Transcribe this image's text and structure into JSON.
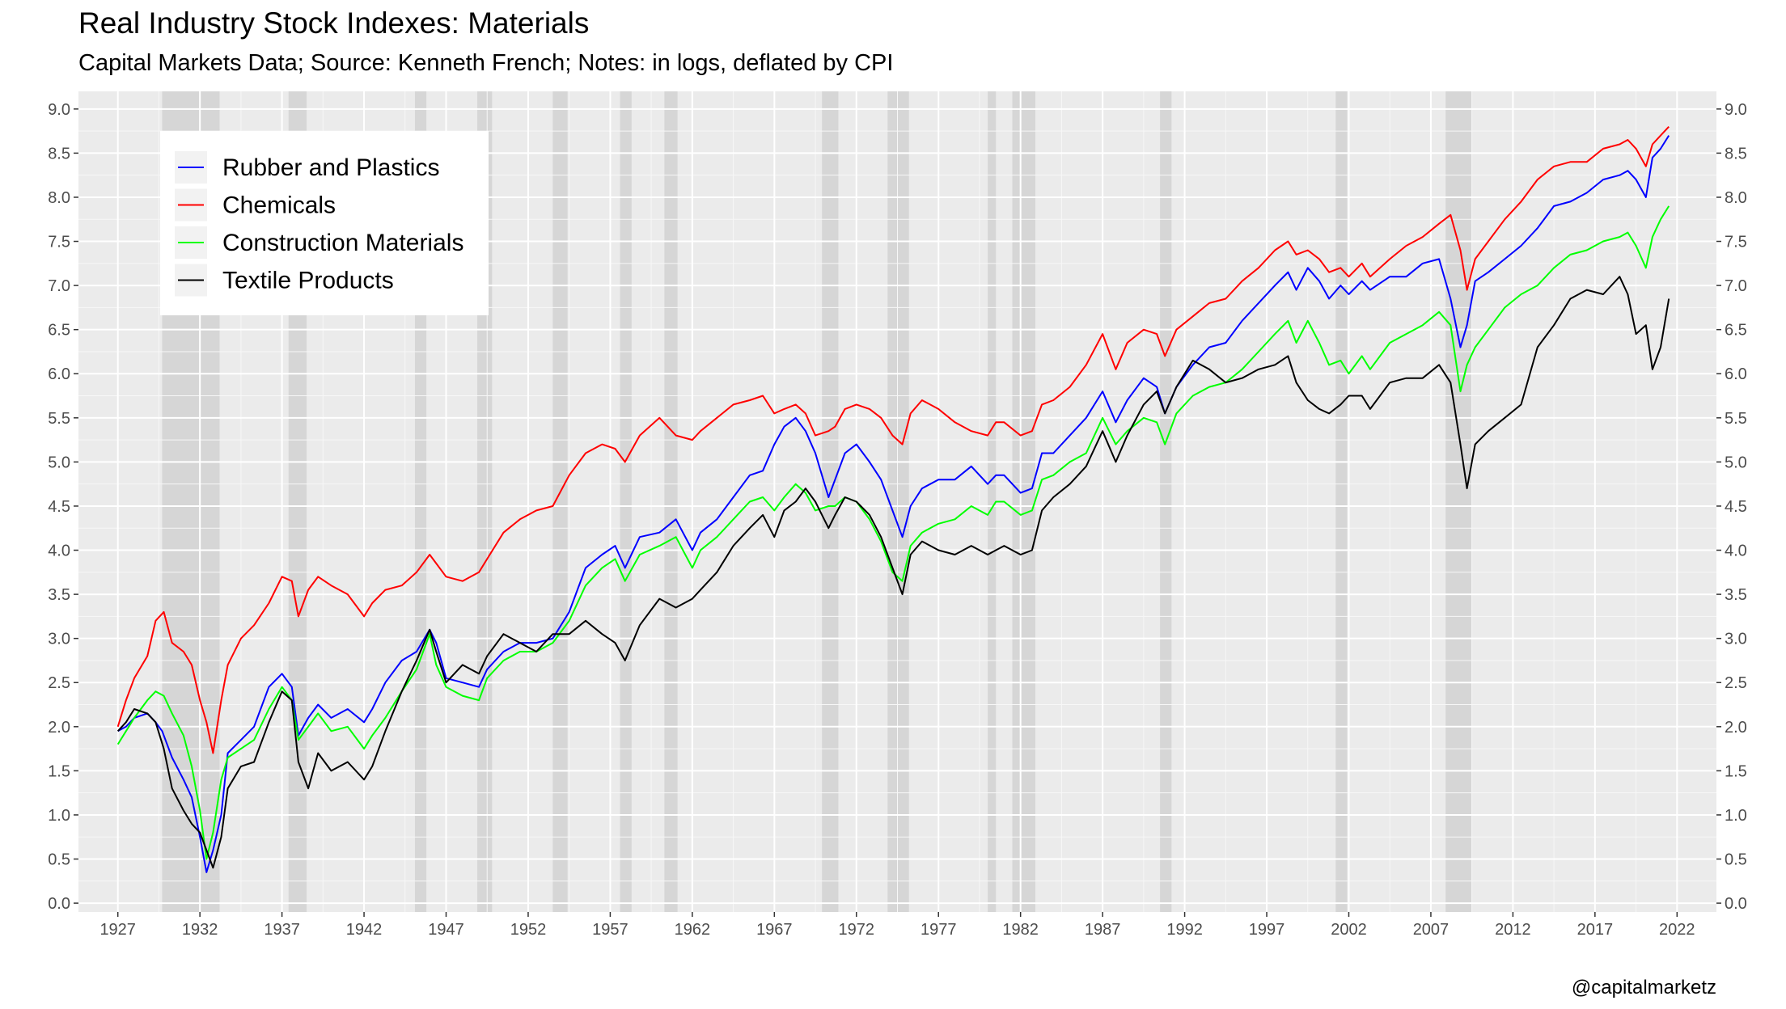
{
  "chart_data": {
    "type": "line",
    "title": "Real Industry Stock Indexes: Materials",
    "subtitle": "Capital Markets Data; Source: Kenneth French; Notes: in logs, deflated by CPI",
    "caption": "@capitalmarketz",
    "xlabel": "",
    "ylabel": "",
    "xlim": [
      1924.6,
      2024.4
    ],
    "ylim": [
      -0.1,
      9.2
    ],
    "x_ticks": [
      1927,
      1932,
      1937,
      1942,
      1947,
      1952,
      1957,
      1962,
      1967,
      1972,
      1977,
      1982,
      1987,
      1992,
      1997,
      2002,
      2007,
      2012,
      2017,
      2022
    ],
    "y_ticks": [
      0.0,
      0.5,
      1.0,
      1.5,
      2.0,
      2.5,
      3.0,
      3.5,
      4.0,
      4.5,
      5.0,
      5.5,
      6.0,
      6.5,
      7.0,
      7.5,
      8.0,
      8.5,
      9.0
    ],
    "y_tick_labels": [
      "0.0",
      "0.5",
      "1.0",
      "1.5",
      "2.0",
      "2.5",
      "3.0",
      "3.5",
      "4.0",
      "4.5",
      "5.0",
      "5.5",
      "6.0",
      "6.5",
      "7.0",
      "7.5",
      "8.0",
      "8.5",
      "9.0"
    ],
    "secondary_y_axis": true,
    "grid": true,
    "legend_position": "top-left",
    "recessions": [
      [
        1929.7,
        1933.2
      ],
      [
        1937.4,
        1938.5
      ],
      [
        1945.1,
        1945.8
      ],
      [
        1948.9,
        1949.8
      ],
      [
        1953.5,
        1954.4
      ],
      [
        1957.6,
        1958.3
      ],
      [
        1960.3,
        1961.1
      ],
      [
        1969.9,
        1970.9
      ],
      [
        1973.9,
        1975.2
      ],
      [
        1980.0,
        1980.5
      ],
      [
        1981.5,
        1982.9
      ],
      [
        1990.5,
        1991.2
      ],
      [
        2001.2,
        2001.9
      ],
      [
        2007.9,
        2009.5
      ]
    ],
    "series": [
      {
        "name": "Rubber and Plastics",
        "color": "#0000ff",
        "x": [
          1927.0,
          1927.5,
          1928.0,
          1928.8,
          1929.3,
          1929.7,
          1930.3,
          1931.0,
          1931.5,
          1932.0,
          1932.4,
          1932.8,
          1933.3,
          1933.7,
          1934.5,
          1935.3,
          1936.2,
          1937.0,
          1937.6,
          1938.0,
          1938.6,
          1939.2,
          1940.0,
          1941.0,
          1942.0,
          1942.5,
          1943.3,
          1944.3,
          1945.2,
          1946.0,
          1946.4,
          1947.0,
          1948.0,
          1949.0,
          1949.5,
          1950.5,
          1951.5,
          1952.5,
          1953.5,
          1954.5,
          1955.5,
          1956.5,
          1957.3,
          1957.9,
          1958.8,
          1960.0,
          1961.0,
          1962.0,
          1962.5,
          1963.5,
          1964.5,
          1965.5,
          1966.3,
          1967.0,
          1967.6,
          1968.3,
          1968.9,
          1969.5,
          1970.3,
          1970.7,
          1971.3,
          1972.0,
          1972.8,
          1973.5,
          1974.2,
          1974.8,
          1975.3,
          1976.0,
          1977.0,
          1978.0,
          1979.0,
          1980.0,
          1980.5,
          1981.0,
          1982.0,
          1982.7,
          1983.3,
          1984.0,
          1985.0,
          1986.0,
          1987.0,
          1987.8,
          1988.5,
          1989.5,
          1990.3,
          1990.8,
          1991.5,
          1992.5,
          1993.5,
          1994.5,
          1995.5,
          1996.5,
          1997.5,
          1998.3,
          1998.8,
          1999.5,
          2000.2,
          2000.8,
          2001.5,
          2002.0,
          2002.8,
          2003.3,
          2004.5,
          2005.5,
          2006.5,
          2007.5,
          2008.2,
          2008.8,
          2009.2,
          2009.7,
          2010.5,
          2011.5,
          2012.5,
          2013.5,
          2014.5,
          2015.5,
          2016.5,
          2017.5,
          2018.5,
          2019.0,
          2019.5,
          2020.1,
          2020.5,
          2021.0,
          2021.5
        ],
        "values": [
          1.95,
          2.0,
          2.1,
          2.15,
          2.05,
          1.95,
          1.65,
          1.4,
          1.2,
          0.75,
          0.35,
          0.6,
          1.0,
          1.7,
          1.85,
          2.0,
          2.45,
          2.6,
          2.45,
          1.9,
          2.1,
          2.25,
          2.1,
          2.2,
          2.05,
          2.2,
          2.5,
          2.75,
          2.85,
          3.1,
          2.95,
          2.55,
          2.5,
          2.45,
          2.65,
          2.85,
          2.95,
          2.95,
          3.0,
          3.3,
          3.8,
          3.95,
          4.05,
          3.8,
          4.15,
          4.2,
          4.35,
          4.0,
          4.2,
          4.35,
          4.6,
          4.85,
          4.9,
          5.2,
          5.4,
          5.5,
          5.35,
          5.1,
          4.6,
          4.8,
          5.1,
          5.2,
          5.0,
          4.8,
          4.45,
          4.15,
          4.5,
          4.7,
          4.8,
          4.8,
          4.95,
          4.75,
          4.85,
          4.85,
          4.65,
          4.7,
          5.1,
          5.1,
          5.3,
          5.5,
          5.8,
          5.45,
          5.7,
          5.95,
          5.85,
          5.55,
          5.85,
          6.1,
          6.3,
          6.35,
          6.6,
          6.8,
          7.0,
          7.15,
          6.95,
          7.2,
          7.05,
          6.85,
          7.0,
          6.9,
          7.05,
          6.95,
          7.1,
          7.1,
          7.25,
          7.3,
          6.85,
          6.3,
          6.55,
          7.05,
          7.15,
          7.3,
          7.45,
          7.65,
          7.9,
          7.95,
          8.05,
          8.2,
          8.25,
          8.3,
          8.2,
          8.0,
          8.45,
          8.55,
          8.7
        ]
      },
      {
        "name": "Chemicals",
        "color": "#ff0000",
        "x": [
          1927.0,
          1927.5,
          1928.0,
          1928.8,
          1929.3,
          1929.8,
          1930.3,
          1931.0,
          1931.5,
          1932.0,
          1932.4,
          1932.8,
          1933.3,
          1933.7,
          1934.5,
          1935.3,
          1936.2,
          1937.0,
          1937.6,
          1938.0,
          1938.6,
          1939.2,
          1940.0,
          1941.0,
          1942.0,
          1942.5,
          1943.3,
          1944.3,
          1945.2,
          1946.0,
          1946.4,
          1947.0,
          1948.0,
          1949.0,
          1949.5,
          1950.5,
          1951.5,
          1952.5,
          1953.5,
          1954.5,
          1955.5,
          1956.5,
          1957.3,
          1957.9,
          1958.8,
          1960.0,
          1961.0,
          1962.0,
          1962.5,
          1963.5,
          1964.5,
          1965.5,
          1966.3,
          1967.0,
          1967.6,
          1968.3,
          1968.9,
          1969.5,
          1970.3,
          1970.7,
          1971.3,
          1972.0,
          1972.8,
          1973.5,
          1974.2,
          1974.8,
          1975.3,
          1976.0,
          1977.0,
          1978.0,
          1979.0,
          1980.0,
          1980.5,
          1981.0,
          1982.0,
          1982.7,
          1983.3,
          1984.0,
          1985.0,
          1986.0,
          1987.0,
          1987.8,
          1988.5,
          1989.5,
          1990.3,
          1990.8,
          1991.5,
          1992.5,
          1993.5,
          1994.5,
          1995.5,
          1996.5,
          1997.5,
          1998.3,
          1998.8,
          1999.5,
          2000.2,
          2000.8,
          2001.5,
          2002.0,
          2002.8,
          2003.3,
          2004.5,
          2005.5,
          2006.5,
          2007.5,
          2008.2,
          2008.8,
          2009.2,
          2009.7,
          2010.5,
          2011.5,
          2012.5,
          2013.5,
          2014.5,
          2015.5,
          2016.5,
          2017.5,
          2018.5,
          2019.0,
          2019.5,
          2020.1,
          2020.5,
          2021.0,
          2021.5
        ],
        "values": [
          2.0,
          2.3,
          2.55,
          2.8,
          3.2,
          3.3,
          2.95,
          2.85,
          2.7,
          2.3,
          2.05,
          1.7,
          2.3,
          2.7,
          3.0,
          3.15,
          3.4,
          3.7,
          3.65,
          3.25,
          3.55,
          3.7,
          3.6,
          3.5,
          3.25,
          3.4,
          3.55,
          3.6,
          3.75,
          3.95,
          3.85,
          3.7,
          3.65,
          3.75,
          3.9,
          4.2,
          4.35,
          4.45,
          4.5,
          4.85,
          5.1,
          5.2,
          5.15,
          5.0,
          5.3,
          5.5,
          5.3,
          5.25,
          5.35,
          5.5,
          5.65,
          5.7,
          5.75,
          5.55,
          5.6,
          5.65,
          5.55,
          5.3,
          5.35,
          5.4,
          5.6,
          5.65,
          5.6,
          5.5,
          5.3,
          5.2,
          5.55,
          5.7,
          5.6,
          5.45,
          5.35,
          5.3,
          5.45,
          5.45,
          5.3,
          5.35,
          5.65,
          5.7,
          5.85,
          6.1,
          6.45,
          6.05,
          6.35,
          6.5,
          6.45,
          6.2,
          6.5,
          6.65,
          6.8,
          6.85,
          7.05,
          7.2,
          7.4,
          7.5,
          7.35,
          7.4,
          7.3,
          7.15,
          7.2,
          7.1,
          7.25,
          7.1,
          7.3,
          7.45,
          7.55,
          7.7,
          7.8,
          7.4,
          6.95,
          7.3,
          7.5,
          7.75,
          7.95,
          8.2,
          8.35,
          8.4,
          8.4,
          8.55,
          8.6,
          8.65,
          8.55,
          8.35,
          8.6,
          8.7,
          8.8
        ]
      },
      {
        "name": "Construction Materials",
        "color": "#00ff00",
        "x": [
          1927.0,
          1927.5,
          1928.0,
          1928.8,
          1929.3,
          1929.8,
          1930.3,
          1931.0,
          1931.5,
          1932.0,
          1932.4,
          1932.8,
          1933.3,
          1933.7,
          1934.5,
          1935.3,
          1936.2,
          1937.0,
          1937.6,
          1938.0,
          1938.6,
          1939.2,
          1940.0,
          1941.0,
          1942.0,
          1942.5,
          1943.3,
          1944.3,
          1945.2,
          1946.0,
          1946.4,
          1947.0,
          1948.0,
          1949.0,
          1949.5,
          1950.5,
          1951.5,
          1952.5,
          1953.5,
          1954.5,
          1955.5,
          1956.5,
          1957.3,
          1957.9,
          1958.8,
          1960.0,
          1961.0,
          1962.0,
          1962.5,
          1963.5,
          1964.5,
          1965.5,
          1966.3,
          1967.0,
          1967.6,
          1968.3,
          1968.9,
          1969.5,
          1970.3,
          1970.7,
          1971.3,
          1972.0,
          1972.8,
          1973.5,
          1974.2,
          1974.8,
          1975.3,
          1976.0,
          1977.0,
          1978.0,
          1979.0,
          1980.0,
          1980.5,
          1981.0,
          1982.0,
          1982.7,
          1983.3,
          1984.0,
          1985.0,
          1986.0,
          1987.0,
          1987.8,
          1988.5,
          1989.5,
          1990.3,
          1990.8,
          1991.5,
          1992.5,
          1993.5,
          1994.5,
          1995.5,
          1996.5,
          1997.5,
          1998.3,
          1998.8,
          1999.5,
          2000.2,
          2000.8,
          2001.5,
          2002.0,
          2002.8,
          2003.3,
          2004.5,
          2005.5,
          2006.5,
          2007.5,
          2008.2,
          2008.8,
          2009.2,
          2009.7,
          2010.5,
          2011.5,
          2012.5,
          2013.5,
          2014.5,
          2015.5,
          2016.5,
          2017.5,
          2018.5,
          2019.0,
          2019.5,
          2020.1,
          2020.5,
          2021.0,
          2021.5
        ],
        "values": [
          1.8,
          1.95,
          2.1,
          2.3,
          2.4,
          2.35,
          2.15,
          1.9,
          1.55,
          1.05,
          0.5,
          0.8,
          1.4,
          1.65,
          1.75,
          1.85,
          2.2,
          2.45,
          2.3,
          1.85,
          2.0,
          2.15,
          1.95,
          2.0,
          1.75,
          1.9,
          2.1,
          2.4,
          2.65,
          3.05,
          2.7,
          2.45,
          2.35,
          2.3,
          2.55,
          2.75,
          2.85,
          2.85,
          2.95,
          3.2,
          3.6,
          3.8,
          3.9,
          3.65,
          3.95,
          4.05,
          4.15,
          3.8,
          4.0,
          4.15,
          4.35,
          4.55,
          4.6,
          4.45,
          4.6,
          4.75,
          4.65,
          4.45,
          4.5,
          4.5,
          4.6,
          4.55,
          4.35,
          4.1,
          3.75,
          3.65,
          4.05,
          4.2,
          4.3,
          4.35,
          4.5,
          4.4,
          4.55,
          4.55,
          4.4,
          4.45,
          4.8,
          4.85,
          5.0,
          5.1,
          5.5,
          5.2,
          5.35,
          5.5,
          5.45,
          5.2,
          5.55,
          5.75,
          5.85,
          5.9,
          6.05,
          6.25,
          6.45,
          6.6,
          6.35,
          6.6,
          6.35,
          6.1,
          6.15,
          6.0,
          6.2,
          6.05,
          6.35,
          6.45,
          6.55,
          6.7,
          6.55,
          5.8,
          6.1,
          6.3,
          6.5,
          6.75,
          6.9,
          7.0,
          7.2,
          7.35,
          7.4,
          7.5,
          7.55,
          7.6,
          7.45,
          7.2,
          7.55,
          7.75,
          7.9
        ]
      },
      {
        "name": "Textile Products",
        "color": "#000000",
        "x": [
          1927.0,
          1927.5,
          1928.0,
          1928.8,
          1929.3,
          1929.8,
          1930.3,
          1931.0,
          1931.5,
          1932.0,
          1932.4,
          1932.8,
          1933.3,
          1933.7,
          1934.5,
          1935.3,
          1936.2,
          1937.0,
          1937.6,
          1938.0,
          1938.6,
          1939.2,
          1940.0,
          1941.0,
          1942.0,
          1942.5,
          1943.3,
          1944.3,
          1945.2,
          1946.0,
          1946.4,
          1947.0,
          1948.0,
          1949.0,
          1949.5,
          1950.5,
          1951.5,
          1952.5,
          1953.5,
          1954.5,
          1955.5,
          1956.5,
          1957.3,
          1957.9,
          1958.8,
          1960.0,
          1961.0,
          1962.0,
          1962.5,
          1963.5,
          1964.5,
          1965.5,
          1966.3,
          1967.0,
          1967.6,
          1968.3,
          1968.9,
          1969.5,
          1970.3,
          1970.7,
          1971.3,
          1972.0,
          1972.8,
          1973.5,
          1974.2,
          1974.8,
          1975.3,
          1976.0,
          1977.0,
          1978.0,
          1979.0,
          1980.0,
          1980.5,
          1981.0,
          1982.0,
          1982.7,
          1983.3,
          1984.0,
          1985.0,
          1986.0,
          1987.0,
          1987.8,
          1988.5,
          1989.5,
          1990.3,
          1990.8,
          1991.5,
          1992.5,
          1993.5,
          1994.5,
          1995.5,
          1996.5,
          1997.5,
          1998.3,
          1998.8,
          1999.5,
          2000.2,
          2000.8,
          2001.5,
          2002.0,
          2002.8,
          2003.3,
          2004.5,
          2005.5,
          2006.5,
          2007.5,
          2008.2,
          2008.8,
          2009.2,
          2009.7,
          2010.5,
          2011.5,
          2012.5,
          2013.5,
          2014.5,
          2015.5,
          2016.5,
          2017.5,
          2018.5,
          2019.0,
          2019.5,
          2020.1,
          2020.5,
          2021.0,
          2021.5
        ],
        "values": [
          1.95,
          2.05,
          2.2,
          2.15,
          2.05,
          1.75,
          1.3,
          1.05,
          0.9,
          0.8,
          0.6,
          0.4,
          0.75,
          1.3,
          1.55,
          1.6,
          2.05,
          2.4,
          2.3,
          1.6,
          1.3,
          1.7,
          1.5,
          1.6,
          1.4,
          1.55,
          1.95,
          2.4,
          2.75,
          3.1,
          2.85,
          2.5,
          2.7,
          2.6,
          2.8,
          3.05,
          2.95,
          2.85,
          3.05,
          3.05,
          3.2,
          3.05,
          2.95,
          2.75,
          3.15,
          3.45,
          3.35,
          3.45,
          3.55,
          3.75,
          4.05,
          4.25,
          4.4,
          4.15,
          4.45,
          4.55,
          4.7,
          4.55,
          4.25,
          4.4,
          4.6,
          4.55,
          4.4,
          4.15,
          3.8,
          3.5,
          3.95,
          4.1,
          4.0,
          3.95,
          4.05,
          3.95,
          4.0,
          4.05,
          3.95,
          4.0,
          4.45,
          4.6,
          4.75,
          4.95,
          5.35,
          5.0,
          5.3,
          5.65,
          5.8,
          5.55,
          5.85,
          6.15,
          6.05,
          5.9,
          5.95,
          6.05,
          6.1,
          6.2,
          5.9,
          5.7,
          5.6,
          5.55,
          5.65,
          5.75,
          5.75,
          5.6,
          5.9,
          5.95,
          5.95,
          6.1,
          5.9,
          5.2,
          4.7,
          5.2,
          5.35,
          5.5,
          5.65,
          6.3,
          6.55,
          6.85,
          6.95,
          6.9,
          7.1,
          6.9,
          6.45,
          6.55,
          6.05,
          6.3,
          6.85
        ]
      }
    ]
  }
}
